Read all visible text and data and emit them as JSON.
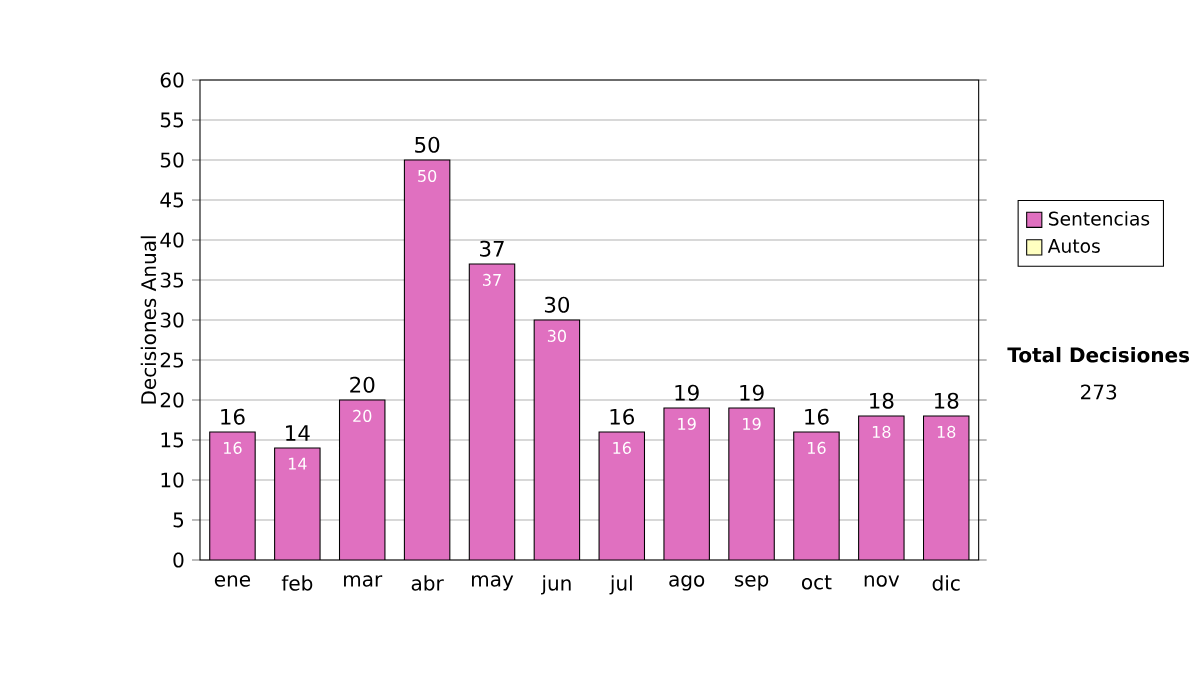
{
  "chart_data": {
    "type": "bar",
    "stacked": true,
    "ylabel": "Decisiones Anual",
    "categories": [
      "ene",
      "feb",
      "mar",
      "abr",
      "may",
      "jun",
      "jul",
      "ago",
      "sep",
      "oct",
      "nov",
      "dic"
    ],
    "series": [
      {
        "name": "Sentencias",
        "color": "#e070c0",
        "values": [
          16,
          14,
          20,
          50,
          37,
          30,
          16,
          19,
          19,
          16,
          18,
          18
        ],
        "value_labels": [
          "16",
          "14",
          "20",
          "50",
          "37",
          "30",
          "16",
          "19",
          "19",
          "16",
          "18",
          "18"
        ]
      },
      {
        "name": "Autos",
        "color": "#ffffc0",
        "values": [
          0,
          0,
          0,
          0,
          0,
          0,
          0,
          0,
          0,
          0,
          0,
          0
        ]
      }
    ],
    "totals": [
      "16",
      "14",
      "20",
      "50",
      "37",
      "30",
      "16",
      "19",
      "19",
      "16",
      "18",
      "18"
    ],
    "ylim": [
      0,
      60
    ],
    "yticks": [
      0,
      5,
      10,
      15,
      20,
      25,
      30,
      35,
      40,
      45,
      50,
      55,
      60
    ],
    "grid": "y",
    "legend": "right",
    "annotations": [
      "Total Decisiones",
      "273"
    ]
  }
}
